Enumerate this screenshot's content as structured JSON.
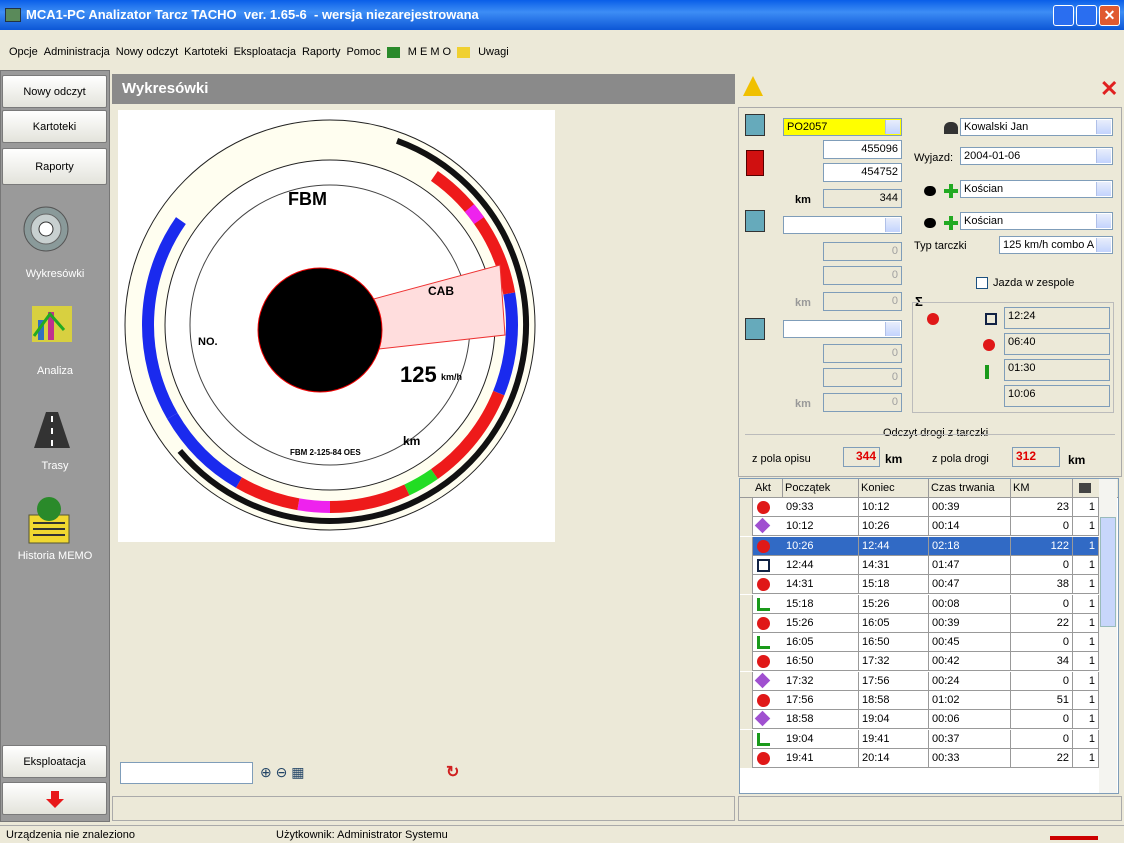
{
  "window": {
    "title": "MCA1-PC Analizator Tarcz TACHO  ver. 1.65-6  - wersja niezarejestrowana"
  },
  "menu": [
    "Opcje",
    "Administracja",
    "Nowy odczyt",
    "Kartoteki",
    "Eksploatacja",
    "Raporty",
    "Pomoc",
    "M E M O",
    "Uwagi"
  ],
  "sidebar": {
    "buttons": [
      "Nowy odczyt",
      "Kartoteki",
      "Raporty"
    ],
    "icons": [
      "Wykresówki",
      "Analiza",
      "Trasy",
      "Historia MEMO"
    ],
    "bottom": "Eksploatacja"
  },
  "main": {
    "header": "Wykresówki",
    "disc": {
      "brand": "FBM",
      "cab": "CAB",
      "speed": "125",
      "speed_unit": "km/h",
      "km": "km",
      "code": "FBM 2-125-84 OES",
      "no": "NO."
    }
  },
  "vehicles": [
    {
      "plate": "PO2057",
      "start": 455096,
      "end": 454752,
      "km_label": "km",
      "km": 344
    },
    {
      "start": 0,
      "end": 0,
      "km_label": "km",
      "km": 0
    },
    {
      "start": 0,
      "end": 0,
      "km_label": "km",
      "km": 0
    }
  ],
  "driver": {
    "name": "Kowalski Jan",
    "departure_label": "Wyjazd:",
    "departure": "2004-01-06",
    "from": "Kościan",
    "to": "Kościan",
    "disc_type_label": "Typ tarczki",
    "disc_type": "125 km/h combo A",
    "team_label": "Jazda w zespole"
  },
  "totals": {
    "sigma": "Σ",
    "total": "12:24",
    "drive": "06:40",
    "rest": "01:30",
    "unknown": "10:06"
  },
  "distance": {
    "title": "Odczyt drogi z tarczki",
    "desc_label": "z pola opisu",
    "desc_value": 344,
    "desc_unit": "km",
    "road_label": "z pola drogi",
    "road_value": 312,
    "road_unit": "km"
  },
  "table": {
    "columns": [
      "Akt",
      "Początek",
      "Koniec",
      "Czas trwania",
      "KM"
    ],
    "rows": [
      [
        "09:33",
        "10:12",
        "00:39",
        23,
        1
      ],
      [
        "10:12",
        "10:26",
        "00:14",
        0,
        1
      ],
      [
        "10:26",
        "12:44",
        "02:18",
        122,
        1
      ],
      [
        "12:44",
        "14:31",
        "01:47",
        0,
        1
      ],
      [
        "14:31",
        "15:18",
        "00:47",
        38,
        1
      ],
      [
        "15:18",
        "15:26",
        "00:08",
        0,
        1
      ],
      [
        "15:26",
        "16:05",
        "00:39",
        22,
        1
      ],
      [
        "16:05",
        "16:50",
        "00:45",
        0,
        1
      ],
      [
        "16:50",
        "17:32",
        "00:42",
        34,
        1
      ],
      [
        "17:32",
        "17:56",
        "00:24",
        0,
        1
      ],
      [
        "17:56",
        "18:58",
        "01:02",
        51,
        1
      ],
      [
        "18:58",
        "19:04",
        "00:06",
        0,
        1
      ],
      [
        "19:04",
        "19:41",
        "00:37",
        0,
        1
      ],
      [
        "19:41",
        "20:14",
        "00:33",
        22,
        1
      ]
    ]
  },
  "status": [
    "Urządzenia nie znaleziono",
    "Użytkownik: Administrator Systemu"
  ]
}
